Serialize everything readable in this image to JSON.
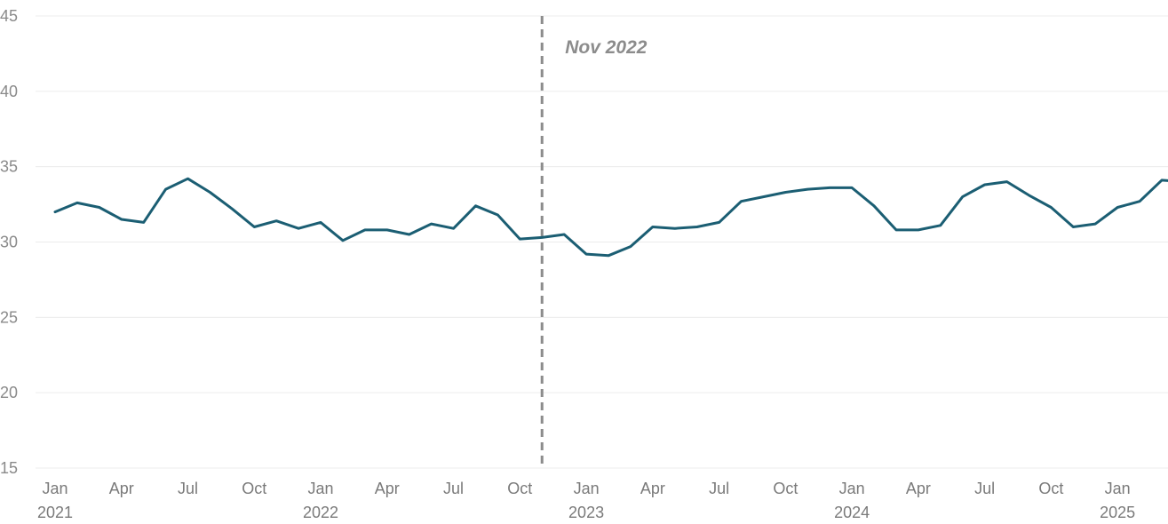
{
  "chart_data": {
    "type": "line",
    "title": "",
    "xlabel": "",
    "ylabel": "",
    "ylim": [
      15,
      45
    ],
    "yticks": [
      15,
      20,
      25,
      30,
      35,
      40,
      45
    ],
    "grid": "horizontal",
    "x_ticks": [
      {
        "month": "Jan",
        "year": "2021"
      },
      {
        "month": "Apr",
        "year": ""
      },
      {
        "month": "Jul",
        "year": ""
      },
      {
        "month": "Oct",
        "year": ""
      },
      {
        "month": "Jan",
        "year": "2022"
      },
      {
        "month": "Apr",
        "year": ""
      },
      {
        "month": "Jul",
        "year": ""
      },
      {
        "month": "Oct",
        "year": ""
      },
      {
        "month": "Jan",
        "year": "2023"
      },
      {
        "month": "Apr",
        "year": ""
      },
      {
        "month": "Jul",
        "year": ""
      },
      {
        "month": "Oct",
        "year": ""
      },
      {
        "month": "Jan",
        "year": "2024"
      },
      {
        "month": "Apr",
        "year": ""
      },
      {
        "month": "Jul",
        "year": ""
      },
      {
        "month": "Oct",
        "year": ""
      },
      {
        "month": "Jan",
        "year": "2025"
      }
    ],
    "annotation": {
      "label": "Nov 2022",
      "x": "2022-11"
    },
    "series": [
      {
        "color": "#1b5e73",
        "points": [
          [
            "2021-01",
            32.0
          ],
          [
            "2021-02",
            32.6
          ],
          [
            "2021-03",
            32.3
          ],
          [
            "2021-04",
            31.5
          ],
          [
            "2021-05",
            31.3
          ],
          [
            "2021-06",
            33.5
          ],
          [
            "2021-07",
            34.2
          ],
          [
            "2021-08",
            33.3
          ],
          [
            "2021-09",
            32.2
          ],
          [
            "2021-10",
            31.0
          ],
          [
            "2021-11",
            31.4
          ],
          [
            "2021-12",
            30.9
          ],
          [
            "2022-01",
            31.3
          ],
          [
            "2022-02",
            30.1
          ],
          [
            "2022-03",
            30.8
          ],
          [
            "2022-04",
            30.8
          ],
          [
            "2022-05",
            30.5
          ],
          [
            "2022-06",
            31.2
          ],
          [
            "2022-07",
            30.9
          ],
          [
            "2022-08",
            32.4
          ],
          [
            "2022-09",
            31.8
          ],
          [
            "2022-10",
            30.2
          ],
          [
            "2022-11",
            30.3
          ],
          [
            "2022-12",
            30.5
          ],
          [
            "2023-01",
            29.2
          ],
          [
            "2023-02",
            29.1
          ],
          [
            "2023-03",
            29.7
          ],
          [
            "2023-04",
            31.0
          ],
          [
            "2023-05",
            30.9
          ],
          [
            "2023-06",
            31.0
          ],
          [
            "2023-07",
            31.3
          ],
          [
            "2023-08",
            32.7
          ],
          [
            "2023-09",
            33.0
          ],
          [
            "2023-10",
            33.3
          ],
          [
            "2023-11",
            33.5
          ],
          [
            "2023-12",
            33.6
          ],
          [
            "2024-01",
            33.6
          ],
          [
            "2024-02",
            32.4
          ],
          [
            "2024-03",
            30.8
          ],
          [
            "2024-04",
            30.8
          ],
          [
            "2024-05",
            31.1
          ],
          [
            "2024-06",
            33.0
          ],
          [
            "2024-07",
            33.8
          ],
          [
            "2024-08",
            34.0
          ],
          [
            "2024-09",
            33.1
          ],
          [
            "2024-10",
            32.3
          ],
          [
            "2024-11",
            31.0
          ],
          [
            "2024-12",
            31.2
          ],
          [
            "2025-01",
            32.3
          ],
          [
            "2025-02",
            32.7
          ],
          [
            "2025-03",
            34.1
          ],
          [
            "2025-04",
            34.0
          ]
        ]
      }
    ]
  }
}
